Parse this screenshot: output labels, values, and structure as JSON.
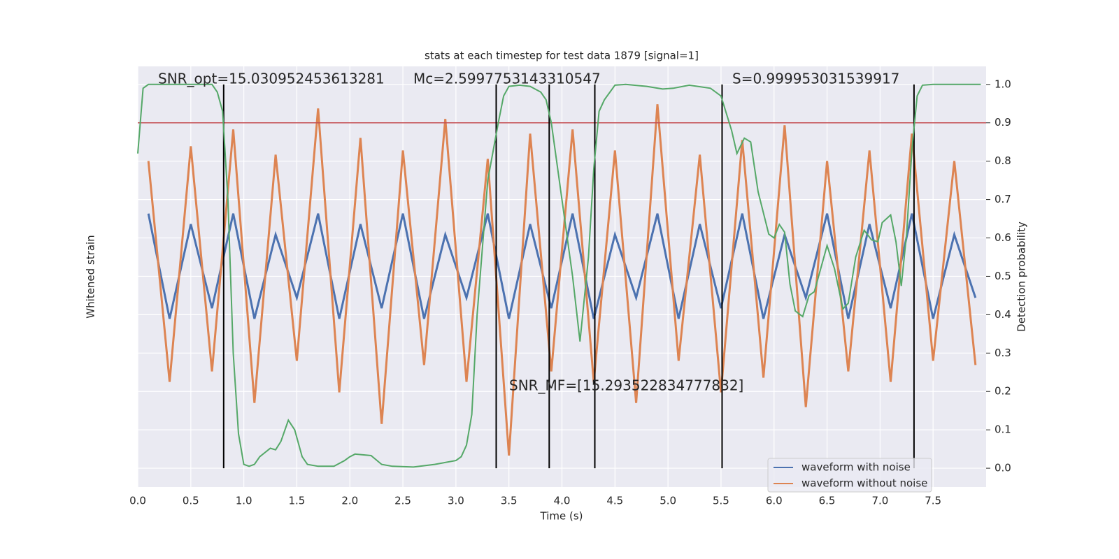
{
  "chart_data": {
    "type": "line",
    "title": "stats at each timestep for test data 1879 [signal=1]",
    "xlabel": "Time (s)",
    "ylabel": "Whitened strain",
    "y2label": "Detection probability",
    "xlim": [
      0,
      8
    ],
    "xticks": [
      {
        "value": 0,
        "label": "0.0"
      },
      {
        "value": 0.5,
        "label": "0.5"
      },
      {
        "value": 1,
        "label": "1.0"
      },
      {
        "value": 1.5,
        "label": "1.5"
      },
      {
        "value": 2,
        "label": "2.0"
      },
      {
        "value": 2.5,
        "label": "2.5"
      },
      {
        "value": 3,
        "label": "3.0"
      },
      {
        "value": 3.5,
        "label": "3.5"
      },
      {
        "value": 4,
        "label": "4.0"
      },
      {
        "value": 4.5,
        "label": "4.5"
      },
      {
        "value": 5,
        "label": "5.0"
      },
      {
        "value": 5.5,
        "label": "5.5"
      },
      {
        "value": 6,
        "label": "6.0"
      },
      {
        "value": 6.5,
        "label": "6.5"
      },
      {
        "value": 7,
        "label": "7.0"
      },
      {
        "value": 7.5,
        "label": "7.5"
      }
    ],
    "ylim": [
      -1,
      1
    ],
    "y2lim": [
      -0.049,
      1.047
    ],
    "y2ticks": [
      {
        "value": 0,
        "label": "0.0"
      },
      {
        "value": 0.1,
        "label": "0.1"
      },
      {
        "value": 0.2,
        "label": "0.2"
      },
      {
        "value": 0.3,
        "label": "0.3"
      },
      {
        "value": 0.4,
        "label": "0.4"
      },
      {
        "value": 0.5,
        "label": "0.5"
      },
      {
        "value": 0.6,
        "label": "0.6"
      },
      {
        "value": 0.7,
        "label": "0.7"
      },
      {
        "value": 0.8,
        "label": "0.8"
      },
      {
        "value": 0.9,
        "label": "0.9"
      },
      {
        "value": 1,
        "label": "1.0"
      }
    ],
    "grid": true,
    "legend": "lower right",
    "series": [
      {
        "name": "waveform with noise",
        "color": "#4c72b0",
        "values": [
          0.3,
          -0.2,
          0.25,
          -0.15,
          0.3,
          -0.2,
          0.2,
          -0.1,
          0.3,
          -0.2,
          0.25,
          -0.15,
          0.3,
          -0.2,
          0.2,
          -0.1,
          0.3,
          -0.2,
          0.25,
          -0.15,
          0.3,
          -0.2,
          0.2,
          -0.1,
          0.3,
          -0.2,
          0.25,
          -0.15,
          0.3,
          -0.2,
          0.2,
          -0.1,
          0.3,
          -0.2,
          0.25,
          -0.15,
          0.3,
          -0.2,
          0.2,
          -0.1
        ]
      },
      {
        "name": "waveform without noise",
        "color": "#dd8452",
        "values": [
          0.55,
          -0.5,
          0.62,
          -0.45,
          0.7,
          -0.6,
          0.58,
          -0.4,
          0.8,
          -0.55,
          0.66,
          -0.7,
          0.6,
          -0.42,
          0.75,
          -0.5,
          0.56,
          -0.85,
          0.68,
          -0.45,
          0.7,
          -0.5,
          0.6,
          -0.6,
          0.82,
          -0.4,
          0.58,
          -0.55,
          0.65,
          -0.48,
          0.72,
          -0.62,
          0.55,
          -0.45,
          0.6,
          -0.5,
          0.68,
          -0.4,
          0.55,
          -0.42
        ]
      }
    ],
    "probability": {
      "name": "Detection probability",
      "color": "#55a868",
      "axis": "y2",
      "x": [
        0,
        0.05,
        0.1,
        0.2,
        0.4,
        0.6,
        0.7,
        0.75,
        0.8,
        0.85,
        0.9,
        0.95,
        1.0,
        1.05,
        1.1,
        1.15,
        1.25,
        1.3,
        1.35,
        1.42,
        1.48,
        1.55,
        1.6,
        1.7,
        1.85,
        1.95,
        2.0,
        2.05,
        2.2,
        2.3,
        2.4,
        2.6,
        2.8,
        3.0,
        3.05,
        3.1,
        3.15,
        3.2,
        3.3,
        3.4,
        3.45,
        3.5,
        3.6,
        3.7,
        3.8,
        3.85,
        3.9,
        4.0,
        4.1,
        4.17,
        4.25,
        4.3,
        4.35,
        4.4,
        4.5,
        4.6,
        4.8,
        4.95,
        5.05,
        5.2,
        5.4,
        5.5,
        5.6,
        5.65,
        5.72,
        5.78,
        5.85,
        5.95,
        6.0,
        6.05,
        6.1,
        6.15,
        6.2,
        6.27,
        6.33,
        6.38,
        6.45,
        6.5,
        6.57,
        6.65,
        6.7,
        6.77,
        6.85,
        6.92,
        6.98,
        7.02,
        7.1,
        7.15,
        7.2,
        7.25,
        7.3,
        7.35,
        7.4,
        7.5,
        7.95
      ],
      "values": [
        0.82,
        0.99,
        1.0,
        1.0,
        1.0,
        1.0,
        1.0,
        0.98,
        0.93,
        0.7,
        0.3,
        0.09,
        0.01,
        0.005,
        0.01,
        0.03,
        0.052,
        0.048,
        0.07,
        0.125,
        0.1,
        0.03,
        0.01,
        0.005,
        0.005,
        0.02,
        0.03,
        0.037,
        0.033,
        0.01,
        0.005,
        0.003,
        0.01,
        0.02,
        0.03,
        0.06,
        0.14,
        0.4,
        0.75,
        0.9,
        0.97,
        0.995,
        0.998,
        0.995,
        0.98,
        0.96,
        0.9,
        0.7,
        0.5,
        0.33,
        0.55,
        0.78,
        0.93,
        0.96,
        0.998,
        1.0,
        0.995,
        0.988,
        0.99,
        0.998,
        0.99,
        0.97,
        0.88,
        0.82,
        0.86,
        0.85,
        0.72,
        0.61,
        0.6,
        0.635,
        0.615,
        0.48,
        0.41,
        0.395,
        0.45,
        0.46,
        0.53,
        0.58,
        0.52,
        0.415,
        0.43,
        0.55,
        0.62,
        0.595,
        0.59,
        0.64,
        0.66,
        0.59,
        0.475,
        0.61,
        0.83,
        0.97,
        0.998,
        1.0,
        1.0
      ]
    },
    "threshold": {
      "value": 0.9,
      "color": "#c44e52"
    },
    "vlines": [
      0.81,
      3.38,
      3.88,
      4.31,
      5.51,
      7.32
    ],
    "annotations": [
      "SNR_opt=15.030952453613281",
      "Mc=2.5997753143310547",
      "S=0.999953031539917",
      "SNR_MF=[15.293522834777832]"
    ]
  }
}
